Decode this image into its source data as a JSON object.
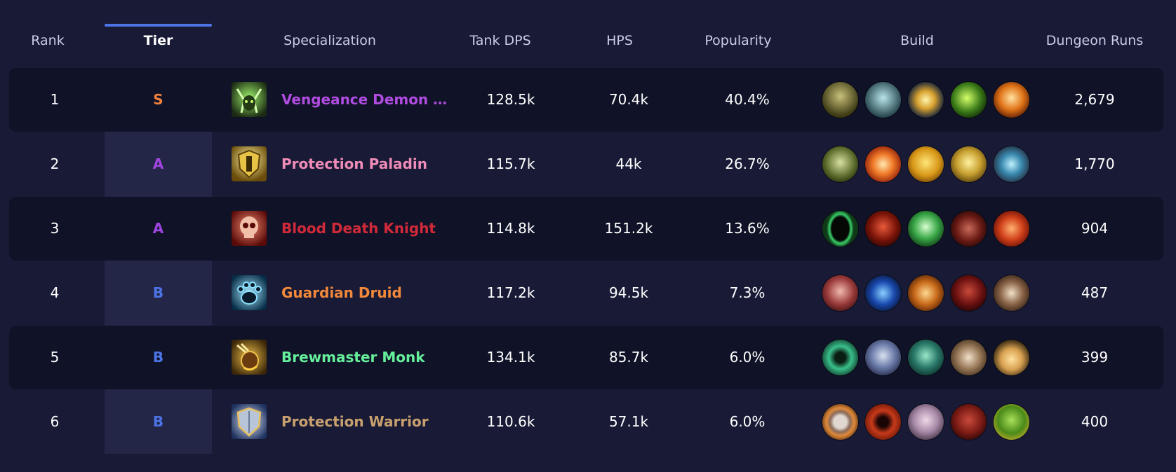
{
  "columns": {
    "rank": "Rank",
    "tier": "Tier",
    "spec": "Specialization",
    "tank_dps": "Tank DPS",
    "hps": "HPS",
    "popularity": "Popularity",
    "build": "Build",
    "runs": "Dungeon Runs"
  },
  "colors": {
    "tier_S": "#f0803c",
    "tier_A": "#a045e0",
    "tier_B": "#4c74e6",
    "active_tab_underline": "#4c74e6"
  },
  "rows": [
    {
      "rank": "1",
      "tier": "S",
      "tier_color": "#f0803c",
      "spec": "Vengeance Demon H...",
      "spec_color": "#b04ce0",
      "spec_icon": "demon-hunter-icon",
      "tank_dps": "128.5k",
      "hps": "70.4k",
      "popularity": "40.4%",
      "runs": "2,679",
      "build": [
        "fel-hood-talent-icon",
        "skull-talent-icon",
        "beam-talent-icon",
        "fel-flame-talent-icon",
        "fire-talent-icon"
      ]
    },
    {
      "rank": "2",
      "tier": "A",
      "tier_color": "#a045e0",
      "spec": "Protection Paladin",
      "spec_color": "#f08cb8",
      "spec_icon": "paladin-shield-icon",
      "tank_dps": "115.7k",
      "hps": "44k",
      "popularity": "26.7%",
      "runs": "1,770",
      "build": [
        "beast-talent-icon",
        "holy-fire-talent-icon",
        "light-talent-icon",
        "shield-talent-icon",
        "rune-talent-icon"
      ]
    },
    {
      "rank": "3",
      "tier": "A",
      "tier_color": "#a045e0",
      "spec": "Blood Death Knight",
      "spec_color": "#d02a3a",
      "spec_icon": "blood-skull-icon",
      "tank_dps": "114.8k",
      "hps": "151.2k",
      "popularity": "13.6%",
      "runs": "904",
      "build": [
        "void-talent-icon",
        "red-skull-talent-icon",
        "green-skull-talent-icon",
        "blade-talent-icon",
        "blood-talent-icon"
      ]
    },
    {
      "rank": "4",
      "tier": "B",
      "tier_color": "#4c74e6",
      "spec": "Guardian Druid",
      "spec_color": "#f2883a",
      "spec_icon": "bear-paw-icon",
      "tank_dps": "117.2k",
      "hps": "94.5k",
      "popularity": "7.3%",
      "runs": "487",
      "build": [
        "maul-talent-icon",
        "frost-talent-icon",
        "claw-talent-icon",
        "bear-talent-icon",
        "fang-talent-icon"
      ]
    },
    {
      "rank": "5",
      "tier": "B",
      "tier_color": "#4c74e6",
      "spec": "Brewmaster Monk",
      "spec_color": "#66f09c",
      "spec_icon": "brewmaster-icon",
      "tank_dps": "134.1k",
      "hps": "85.7k",
      "popularity": "6.0%",
      "runs": "399",
      "build": [
        "swirl-talent-icon",
        "chi-talent-icon",
        "jade-talent-icon",
        "keg-talent-icon",
        "fist-talent-icon"
      ]
    },
    {
      "rank": "6",
      "tier": "B",
      "tier_color": "#4c74e6",
      "spec": "Protection Warrior",
      "spec_color": "#c8a06e",
      "spec_icon": "warrior-shield-icon",
      "tank_dps": "110.6k",
      "hps": "57.1k",
      "popularity": "6.0%",
      "runs": "400",
      "build": [
        "round-shield-talent-icon",
        "rage-talent-icon",
        "shout-talent-icon",
        "demon-talent-icon",
        "orc-talent-icon"
      ]
    }
  ]
}
